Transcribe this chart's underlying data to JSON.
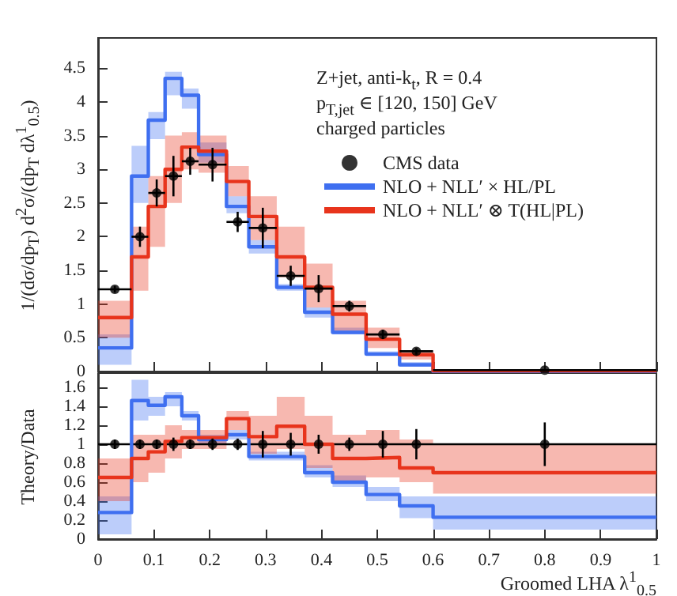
{
  "chart_data": [
    {
      "type": "step",
      "ylabel": "1/(dσ/dp$_{T}$) d$^{2}$σ/(dp$_{T}$ dλ$^{1}$$_{0.5}$)",
      "annotations": [
        "Z+jet, anti-k$_{t}$, R = 0.4",
        "p$_{T,jet}$ ∈ [120, 150] GeV",
        "charged particles"
      ],
      "xlim": [
        0,
        1
      ],
      "xticks": [
        0,
        0.1,
        0.2,
        0.3,
        0.4,
        0.5,
        0.6,
        0.7,
        0.8,
        0.9,
        1
      ],
      "ylim": [
        0,
        4.95
      ],
      "yticks": [
        0,
        0.5,
        1,
        1.5,
        2,
        2.5,
        3,
        3.5,
        4,
        4.5
      ],
      "tick_labels": "y",
      "legend": "top right",
      "series": [
        {
          "name": "CMS data",
          "type": "scatter",
          "color": "#000000",
          "marker": "circle",
          "x": [
            0.03,
            0.075,
            0.105,
            0.135,
            0.165,
            0.205,
            0.25,
            0.295,
            0.345,
            0.395,
            0.45,
            0.51,
            0.57,
            0.8
          ],
          "values": [
            1.22,
            2.0,
            2.65,
            2.9,
            3.12,
            3.07,
            2.22,
            2.13,
            1.42,
            1.23,
            0.97,
            0.55,
            0.3,
            0.02
          ],
          "errors": [
            0.05,
            0.15,
            0.2,
            0.3,
            0.2,
            0.25,
            0.15,
            0.3,
            0.15,
            0.2,
            0.08,
            0.07,
            0.05,
            null
          ],
          "xerrors": [
            0.03,
            0.015,
            0.015,
            0.015,
            0.015,
            0.025,
            0.02,
            0.025,
            0.025,
            0.025,
            0.03,
            0.03,
            0.03,
            0.2
          ]
        },
        {
          "name": "NLO + NLL′ × HL/PL",
          "color": "#3f6ff0",
          "x": [
            0,
            0.06,
            0.09,
            0.12,
            0.15,
            0.18,
            0.23,
            0.27,
            0.32,
            0.37,
            0.42,
            0.48,
            0.54,
            0.6,
            1.0
          ],
          "values": [
            0.35,
            2.9,
            3.73,
            4.35,
            4.1,
            3.22,
            2.45,
            1.85,
            1.25,
            0.88,
            0.58,
            0.26,
            0.1,
            0.0,
            0.0
          ],
          "lower": [
            0.1,
            2.5,
            3.45,
            4.1,
            3.9,
            3.1,
            2.35,
            1.75,
            1.2,
            0.8,
            0.55,
            0.23,
            0.07,
            0.0,
            0.0
          ],
          "upper": [
            0.55,
            3.35,
            3.85,
            4.45,
            4.2,
            3.4,
            2.6,
            1.95,
            1.3,
            0.95,
            0.65,
            0.3,
            0.14,
            0.01,
            0.01
          ]
        },
        {
          "name": "NLO + NLL′ ⊗ T(HL|PL)",
          "color": "#e8341c",
          "x": [
            0,
            0.06,
            0.09,
            0.12,
            0.15,
            0.18,
            0.23,
            0.27,
            0.32,
            0.37,
            0.42,
            0.48,
            0.54,
            0.6,
            1.0
          ],
          "values": [
            0.8,
            1.7,
            2.45,
            3.0,
            3.33,
            3.27,
            2.82,
            2.3,
            1.7,
            1.25,
            0.85,
            0.48,
            0.25,
            0.01,
            0.01
          ],
          "lower": [
            0.5,
            1.2,
            1.85,
            2.5,
            3.0,
            2.95,
            2.6,
            1.95,
            1.4,
            0.95,
            0.6,
            0.35,
            0.18,
            0.01,
            0.01
          ],
          "upper": [
            1.05,
            2.15,
            2.9,
            3.5,
            3.55,
            3.5,
            3.05,
            2.6,
            2.15,
            1.6,
            1.05,
            0.65,
            0.3,
            0.02,
            0.02
          ]
        }
      ]
    },
    {
      "type": "step",
      "xlabel": "Groomed LHA λ$^{1}$$_{0.5}$",
      "ylabel": "Theory/Data",
      "xlim": [
        0,
        1
      ],
      "xticks": [
        0,
        0.1,
        0.2,
        0.3,
        0.4,
        0.5,
        0.6,
        0.7,
        0.8,
        0.9,
        1
      ],
      "ylim": [
        0,
        1.75
      ],
      "yticks": [
        0,
        0.2,
        0.4,
        0.6,
        0.8,
        1,
        1.2,
        1.4,
        1.6
      ],
      "ref_lines": [
        {
          "axis": "y",
          "value": 1,
          "color": "#000000"
        }
      ],
      "series": [
        {
          "type": "scatter",
          "color": "#000000",
          "marker": "circle",
          "x": [
            0.03,
            0.075,
            0.105,
            0.135,
            0.165,
            0.205,
            0.25,
            0.295,
            0.345,
            0.395,
            0.45,
            0.51,
            0.57,
            0.8
          ],
          "values": [
            1,
            1,
            1,
            1,
            1,
            1,
            1,
            1,
            1,
            1,
            1,
            1,
            1,
            1
          ],
          "errors": [
            0.05,
            0.05,
            0.05,
            0.07,
            0.05,
            0.06,
            0.06,
            0.14,
            0.12,
            0.1,
            0.07,
            0.14,
            0.16,
            0.23
          ]
        },
        {
          "color": "#3f6ff0",
          "x": [
            0,
            0.06,
            0.09,
            0.12,
            0.15,
            0.18,
            0.23,
            0.27,
            0.32,
            0.37,
            0.42,
            0.48,
            0.54,
            0.6,
            1.0
          ],
          "values": [
            0.28,
            1.46,
            1.41,
            1.5,
            1.3,
            1.05,
            1.1,
            0.87,
            0.87,
            0.7,
            0.6,
            0.47,
            0.35,
            0.23,
            0.23
          ],
          "lower": [
            0.05,
            1.25,
            1.3,
            1.4,
            1.25,
            1.0,
            1.05,
            0.83,
            0.83,
            0.65,
            0.55,
            0.4,
            0.22,
            0.1,
            0.1
          ],
          "upper": [
            0.45,
            1.68,
            1.5,
            1.55,
            1.35,
            1.1,
            1.15,
            0.92,
            0.92,
            0.78,
            0.67,
            0.55,
            0.45,
            0.45,
            0.45
          ]
        },
        {
          "color": "#e8341c",
          "x": [
            0,
            0.06,
            0.09,
            0.12,
            0.15,
            0.18,
            0.23,
            0.27,
            0.32,
            0.37,
            0.42,
            0.48,
            0.54,
            0.6,
            1.0
          ],
          "values": [
            0.65,
            0.85,
            0.92,
            1.03,
            1.07,
            1.07,
            1.27,
            1.08,
            1.19,
            1.0,
            0.85,
            0.86,
            0.75,
            0.7,
            0.7
          ],
          "lower": [
            0.4,
            0.6,
            0.7,
            0.85,
            0.95,
            0.95,
            1.15,
            0.9,
            0.95,
            0.75,
            0.6,
            0.65,
            0.6,
            0.48,
            0.48
          ],
          "upper": [
            0.85,
            1.1,
            1.1,
            1.2,
            1.15,
            1.15,
            1.35,
            1.3,
            1.5,
            1.3,
            1.1,
            1.15,
            1.05,
            1.0,
            1.0
          ]
        }
      ]
    }
  ]
}
